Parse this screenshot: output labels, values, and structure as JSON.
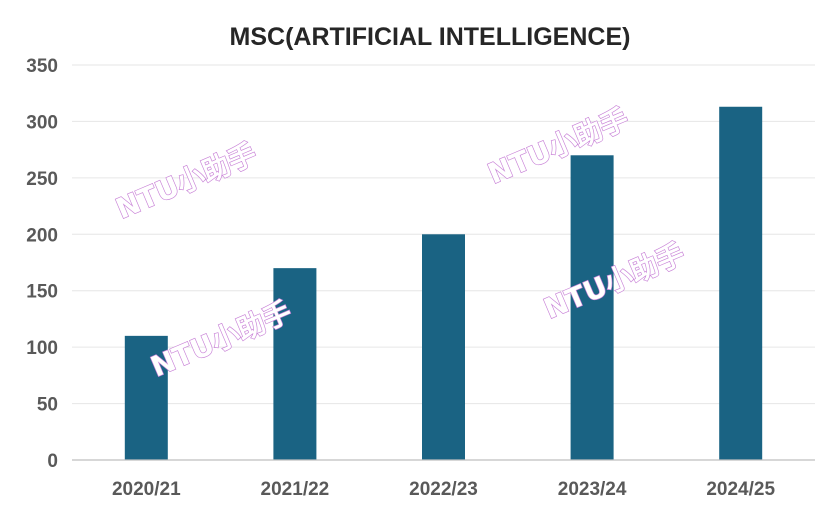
{
  "chart_data": {
    "type": "bar",
    "title": "MSC(ARTIFICIAL INTELLIGENCE)",
    "categories": [
      "2020/21",
      "2021/22",
      "2022/23",
      "2023/24",
      "2024/25"
    ],
    "values": [
      110,
      170,
      200,
      270,
      313
    ],
    "xlabel": "",
    "ylabel": "",
    "ylim": [
      0,
      350
    ],
    "yticks": [
      0,
      50,
      100,
      150,
      200,
      250,
      300,
      350
    ],
    "grid": true,
    "legend": "none",
    "bar_color": "#1a6383"
  },
  "watermark": {
    "text": "NTU小助手",
    "color": "#c77fd6"
  }
}
